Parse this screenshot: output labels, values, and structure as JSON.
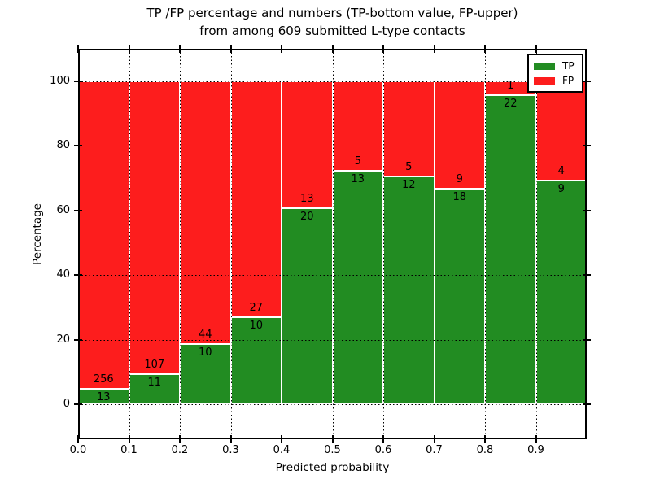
{
  "title": {
    "line1": "TP /FP percentage and numbers (TP-bottom value, FP-upper)",
    "line2": "from among 609 submitted L-type contacts"
  },
  "axes": {
    "xlabel": "Predicted probability",
    "ylabel": "Percentage",
    "x_ticks": [
      "0.0",
      "0.1",
      "0.2",
      "0.3",
      "0.4",
      "0.5",
      "0.6",
      "0.7",
      "0.8",
      "0.9"
    ],
    "y_ticks": [
      "0",
      "20",
      "40",
      "60",
      "80",
      "100"
    ]
  },
  "legend": {
    "items": [
      {
        "label": "TP",
        "color_key": "tp"
      },
      {
        "label": "FP",
        "color_key": "fp"
      }
    ]
  },
  "colors": {
    "tp": "#228c22",
    "fp": "#fd1d1d",
    "bar_edge": "#ffffff",
    "grid": "#000000"
  },
  "chart_data": {
    "type": "bar",
    "stacked": true,
    "normalized_to_percent": true,
    "title": "TP /FP percentage and numbers (TP-bottom value, FP-upper) from among 609 submitted L-type contacts",
    "xlabel": "Predicted probability",
    "ylabel": "Percentage",
    "bin_starts": [
      0.0,
      0.1,
      0.2,
      0.3,
      0.4,
      0.5,
      0.6,
      0.7,
      0.8,
      0.9
    ],
    "bin_width": 0.1,
    "series": [
      {
        "name": "TP",
        "counts": [
          13,
          11,
          10,
          10,
          20,
          13,
          12,
          18,
          22,
          9
        ]
      },
      {
        "name": "FP",
        "counts": [
          256,
          107,
          44,
          27,
          13,
          5,
          5,
          9,
          1,
          4
        ]
      }
    ],
    "tp_percentages": [
      4.8,
      9.3,
      18.5,
      27.0,
      60.6,
      72.2,
      70.6,
      66.7,
      95.7,
      69.2
    ],
    "total_contacts": 609,
    "xlim": [
      0.0,
      1.0
    ],
    "ylim": [
      -11,
      110
    ],
    "y_tick_values": [
      0,
      20,
      40,
      60,
      80,
      100
    ],
    "grid": true,
    "grid_style": "dotted",
    "legend_position": "upper right",
    "bar_label_rule": "FP count above TP/FP boundary, TP count below boundary"
  }
}
